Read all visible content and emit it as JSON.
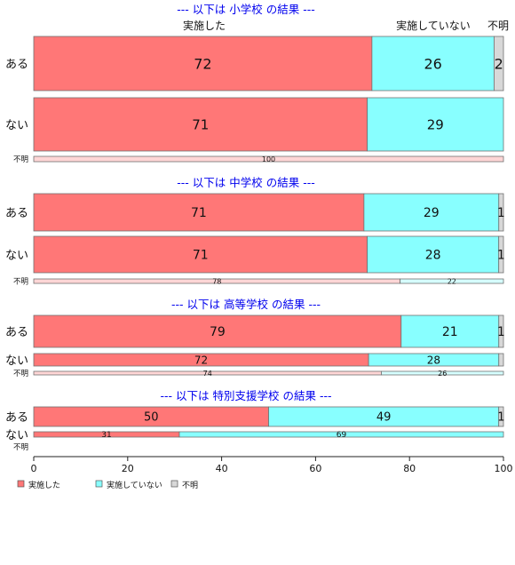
{
  "colors": {
    "done": "#ff7777",
    "not_done": "#88ffff",
    "unknown": "#d8d8d8",
    "done_light": "#ffd6d6",
    "not_done_light": "#d6ffff",
    "title": "#0000ee",
    "stroke": "#707070"
  },
  "chart_data": {
    "type": "bar",
    "orientation": "horizontal-stacked-100",
    "xlim": [
      0,
      100
    ],
    "x_ticks": [
      "0",
      "20",
      "40",
      "60",
      "80",
      "100"
    ],
    "column_headers": [
      "実施した",
      "実施していない",
      "不明"
    ],
    "legend": {
      "placement": "bottom-left",
      "entries": [
        "実施した",
        "実施していない",
        "不明"
      ]
    },
    "panels": [
      {
        "title": "--- 以下は 小学校 の結果 ---",
        "rows": [
          {
            "label": "ある",
            "values": [
              72,
              26,
              2
            ],
            "labels": [
              "72",
              "26",
              "2"
            ]
          },
          {
            "label": "ない",
            "values": [
              71,
              29,
              0
            ],
            "labels": [
              "71",
              "29",
              ""
            ]
          },
          {
            "label": "不明",
            "values": [
              100,
              0,
              0
            ],
            "labels": [
              "100",
              "",
              ""
            ]
          }
        ]
      },
      {
        "title": "--- 以下は 中学校 の結果 ---",
        "rows": [
          {
            "label": "ある",
            "values": [
              71,
              29,
              1
            ],
            "labels": [
              "71",
              "29",
              "1"
            ]
          },
          {
            "label": "ない",
            "values": [
              71,
              28,
              1
            ],
            "labels": [
              "71",
              "28",
              "1"
            ]
          },
          {
            "label": "不明",
            "values": [
              78,
              22,
              0
            ],
            "labels": [
              "78",
              "22",
              ""
            ]
          }
        ]
      },
      {
        "title": "--- 以下は 高等学校 の結果 ---",
        "rows": [
          {
            "label": "ある",
            "values": [
              79,
              21,
              1
            ],
            "labels": [
              "79",
              "21",
              "1"
            ]
          },
          {
            "label": "ない",
            "values": [
              72,
              28,
              1
            ],
            "labels": [
              "72",
              "28",
              ""
            ]
          },
          {
            "label": "不明",
            "values": [
              74,
              26,
              0
            ],
            "labels": [
              "74",
              "26",
              ""
            ]
          }
        ]
      },
      {
        "title": "--- 以下は 特別支援学校 の結果 ---",
        "rows": [
          {
            "label": "ある",
            "values": [
              50,
              49,
              1
            ],
            "labels": [
              "50",
              "49",
              "1"
            ]
          },
          {
            "label": "ない",
            "values": [
              31,
              69,
              0
            ],
            "labels": [
              "31",
              "69",
              ""
            ]
          },
          {
            "label": "不明",
            "values": [
              0,
              0,
              0
            ],
            "labels": [
              "",
              "",
              ""
            ]
          }
        ]
      }
    ]
  }
}
